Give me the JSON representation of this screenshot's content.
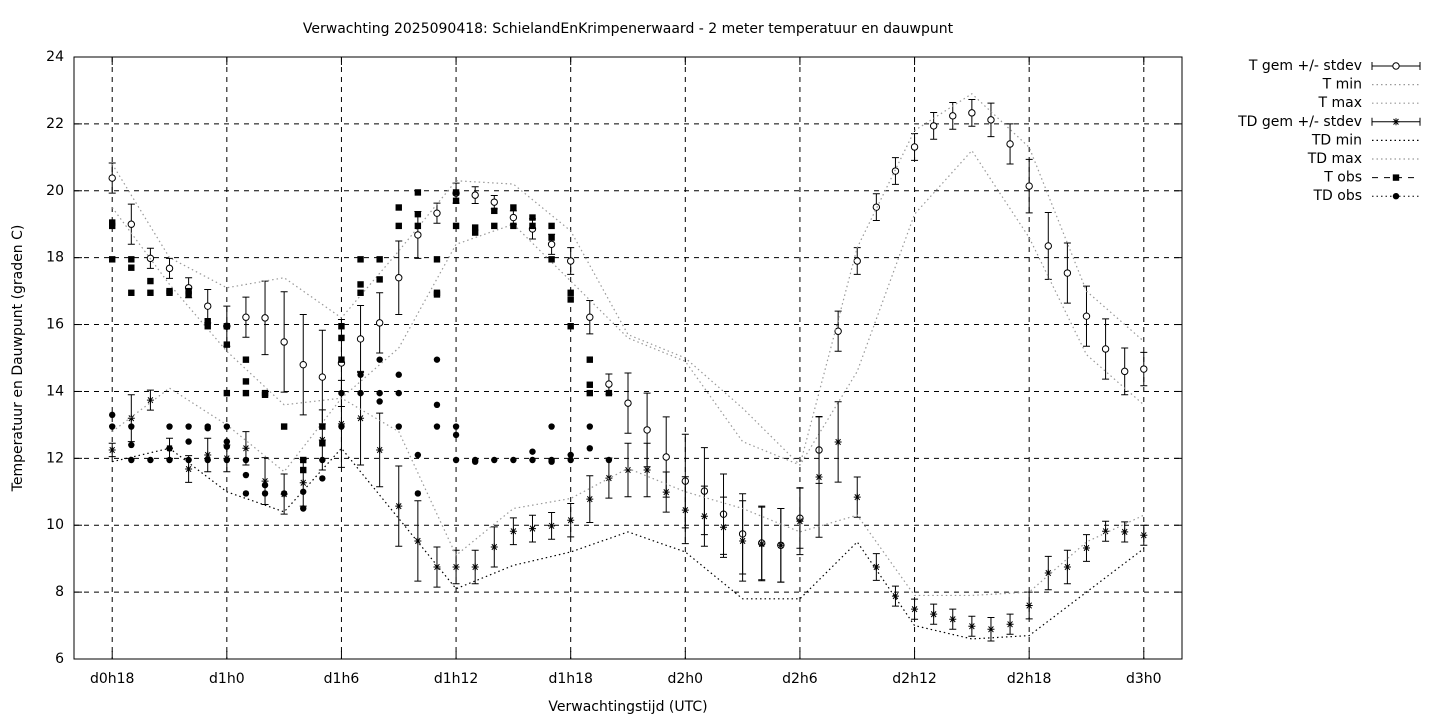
{
  "chart_data": {
    "type": "line",
    "title": "Verwachting 2025090418: SchielandEnKrimpenerwaard - 2 meter temperatuur en dauwpunt",
    "x_label": "Verwachtingstijd (UTC)",
    "y_label": "Temperatuur en Dauwpunt (graden C)",
    "xlim": [
      16,
      74
    ],
    "ylim": [
      6,
      24
    ],
    "xticks": [
      {
        "value": 18,
        "label": "d0h18"
      },
      {
        "value": 24,
        "label": "d1h0"
      },
      {
        "value": 30,
        "label": "d1h6"
      },
      {
        "value": 36,
        "label": "d1h12"
      },
      {
        "value": 42,
        "label": "d1h18"
      },
      {
        "value": 48,
        "label": "d2h0"
      },
      {
        "value": 54,
        "label": "d2h6"
      },
      {
        "value": 60,
        "label": "d2h12"
      },
      {
        "value": 66,
        "label": "d2h18"
      },
      {
        "value": 72,
        "label": "d3h0"
      }
    ],
    "yticks": [
      6,
      8,
      10,
      12,
      14,
      16,
      18,
      20,
      22,
      24
    ],
    "grid": true,
    "legend": "outside-right",
    "series": [
      {
        "name": "T gem +/- stdev",
        "style": "errorbars",
        "marker": "circle",
        "color": "#000000",
        "x": [
          18,
          19,
          20,
          21,
          22,
          23,
          24,
          25,
          26,
          27,
          28,
          29,
          30,
          31,
          32,
          33,
          34,
          35,
          36,
          37,
          38,
          39,
          40,
          41,
          42,
          43,
          44,
          45,
          46,
          47,
          48,
          49,
          50,
          51,
          52,
          53,
          54,
          55,
          56,
          57,
          58,
          59,
          60,
          61,
          62,
          63,
          64,
          65,
          66,
          67,
          68,
          69,
          70,
          71,
          72
        ],
        "values": [
          20.38,
          19.0,
          17.98,
          17.68,
          17.1,
          16.55,
          15.95,
          16.22,
          16.2,
          15.48,
          14.8,
          14.43,
          14.85,
          15.57,
          16.05,
          17.4,
          18.68,
          19.33,
          19.93,
          19.87,
          19.66,
          19.2,
          18.86,
          18.4,
          17.9,
          16.22,
          14.22,
          13.65,
          12.85,
          12.04,
          11.32,
          11.02,
          10.33,
          9.74,
          9.47,
          9.4,
          10.21,
          12.25,
          15.8,
          17.9,
          19.51,
          20.59,
          21.31,
          21.94,
          22.24,
          22.33,
          22.12,
          21.4,
          20.14,
          18.35,
          17.54,
          16.25,
          15.27,
          14.6,
          14.67
        ],
        "errors": [
          0.45,
          0.6,
          0.3,
          0.3,
          0.3,
          0.5,
          0.6,
          0.6,
          1.1,
          1.5,
          1.5,
          1.4,
          1.3,
          1.0,
          0.9,
          1.1,
          0.7,
          0.3,
          0.3,
          0.25,
          0.2,
          0.2,
          0.3,
          0.3,
          0.4,
          0.5,
          0.3,
          0.9,
          1.1,
          1.2,
          1.4,
          1.3,
          1.2,
          1.2,
          1.1,
          1.1,
          0.9,
          1.0,
          0.6,
          0.4,
          0.4,
          0.4,
          0.4,
          0.4,
          0.4,
          0.4,
          0.5,
          0.6,
          0.8,
          1.0,
          0.9,
          0.9,
          0.9,
          0.7,
          0.5
        ]
      },
      {
        "name": "T min",
        "style": "dotted",
        "color": "#999999",
        "x": [
          18,
          21,
          24,
          27,
          30,
          33,
          36,
          39,
          42,
          45,
          48,
          51,
          54,
          57,
          60,
          63,
          66,
          69,
          72
        ],
        "values": [
          19.5,
          17.2,
          15.2,
          13.6,
          13.8,
          15.3,
          18.4,
          19.0,
          17.3,
          15.6,
          14.9,
          12.5,
          11.8,
          14.6,
          19.3,
          21.2,
          18.6,
          15.1,
          13.6
        ]
      },
      {
        "name": "T max",
        "style": "dotted",
        "color": "#999999",
        "x": [
          18,
          21,
          24,
          27,
          30,
          33,
          36,
          39,
          42,
          45,
          48,
          51,
          54,
          57,
          60,
          63,
          66,
          69,
          72
        ],
        "values": [
          20.8,
          18.0,
          17.1,
          17.4,
          16.2,
          18.2,
          20.3,
          20.2,
          18.8,
          15.7,
          15.0,
          13.5,
          11.8,
          18.3,
          21.8,
          22.9,
          21.3,
          17.0,
          15.5
        ]
      },
      {
        "name": "TD gem +/- stdev",
        "style": "errorbars",
        "marker": "star",
        "color": "#000000",
        "x": [
          18,
          19,
          20,
          21,
          22,
          23,
          24,
          25,
          26,
          27,
          28,
          29,
          30,
          31,
          32,
          33,
          34,
          35,
          36,
          37,
          38,
          39,
          40,
          41,
          42,
          43,
          44,
          45,
          46,
          47,
          48,
          49,
          50,
          51,
          52,
          53,
          54,
          55,
          56,
          57,
          58,
          59,
          60,
          61,
          62,
          63,
          64,
          65,
          66,
          67,
          68,
          69,
          70,
          71,
          72
        ],
        "values": [
          12.25,
          13.2,
          13.74,
          12.3,
          11.68,
          12.1,
          12.0,
          12.3,
          11.32,
          10.93,
          11.27,
          12.55,
          13.03,
          13.2,
          12.25,
          10.57,
          9.53,
          8.75,
          8.75,
          8.75,
          9.35,
          9.82,
          9.9,
          9.98,
          10.15,
          10.78,
          11.41,
          11.65,
          11.65,
          10.99,
          10.45,
          10.27,
          9.94,
          9.53,
          9.44,
          9.4,
          10.12,
          11.44,
          12.49,
          10.84,
          8.75,
          7.88,
          7.49,
          7.34,
          7.19,
          6.98,
          6.89,
          7.04,
          7.6,
          8.57,
          8.75,
          9.32,
          9.82,
          9.8,
          9.7
        ],
        "errors": [
          0.2,
          0.7,
          0.3,
          0.3,
          0.4,
          0.5,
          0.4,
          0.5,
          0.7,
          0.6,
          0.7,
          0.9,
          1.3,
          1.4,
          1.1,
          1.2,
          1.2,
          0.6,
          0.5,
          0.5,
          0.6,
          0.4,
          0.4,
          0.4,
          0.5,
          0.7,
          0.6,
          0.8,
          0.8,
          0.6,
          1.0,
          0.9,
          0.9,
          1.2,
          1.1,
          1.1,
          1.0,
          1.8,
          1.2,
          0.6,
          0.4,
          0.3,
          0.3,
          0.3,
          0.3,
          0.3,
          0.35,
          0.3,
          0.4,
          0.5,
          0.5,
          0.4,
          0.3,
          0.3,
          0.3
        ]
      },
      {
        "name": "TD min",
        "style": "dotted",
        "color": "#000000",
        "x": [
          18,
          21,
          24,
          27,
          30,
          33,
          36,
          39,
          42,
          45,
          48,
          51,
          54,
          57,
          60,
          63,
          66,
          69,
          72
        ],
        "values": [
          11.9,
          12.3,
          11.0,
          10.4,
          12.3,
          10.2,
          8.1,
          8.8,
          9.2,
          9.8,
          9.2,
          7.8,
          7.8,
          9.5,
          7.0,
          6.6,
          6.7,
          8.0,
          9.3
        ]
      },
      {
        "name": "TD max",
        "style": "dotted",
        "color": "#999999",
        "x": [
          18,
          21,
          24,
          27,
          30,
          33,
          36,
          39,
          42,
          45,
          48,
          51,
          54,
          57,
          60,
          63,
          66,
          69,
          72
        ],
        "values": [
          12.8,
          14.1,
          13.0,
          11.6,
          13.8,
          12.8,
          9.1,
          10.5,
          10.8,
          11.7,
          11.0,
          10.5,
          9.8,
          10.3,
          7.9,
          7.9,
          8.0,
          9.5,
          10.3
        ]
      },
      {
        "name": "T obs",
        "style": "points",
        "marker": "square",
        "color": "#000000",
        "x": [
          18,
          18,
          18,
          19,
          19,
          19,
          20,
          20,
          21,
          21,
          22,
          22,
          23,
          23,
          24,
          24,
          24,
          25,
          25,
          25,
          26,
          26,
          27,
          28,
          28,
          29,
          29,
          30,
          30,
          30,
          31,
          31,
          31,
          32,
          32,
          33,
          33,
          34,
          34,
          34,
          35,
          35,
          35,
          36,
          36,
          36,
          37,
          37,
          38,
          38,
          39,
          39,
          40,
          40,
          41,
          41,
          41,
          42,
          42,
          42,
          43,
          43,
          43,
          44
        ],
        "values": [
          19.05,
          18.95,
          17.95,
          17.95,
          17.7,
          16.95,
          17.3,
          16.95,
          17.0,
          16.95,
          17.0,
          16.9,
          16.1,
          15.95,
          15.95,
          15.4,
          13.95,
          14.95,
          14.3,
          13.95,
          13.95,
          13.9,
          12.95,
          11.95,
          11.65,
          12.95,
          12.45,
          15.95,
          15.6,
          14.95,
          17.95,
          17.2,
          16.95,
          17.95,
          17.35,
          19.5,
          18.95,
          19.95,
          19.3,
          18.95,
          17.95,
          16.95,
          16.9,
          19.95,
          19.7,
          18.95,
          18.9,
          18.75,
          19.4,
          18.95,
          19.5,
          18.95,
          19.2,
          18.95,
          18.95,
          18.6,
          17.95,
          16.95,
          16.75,
          15.95,
          14.95,
          14.2,
          13.95,
          13.95
        ]
      },
      {
        "name": "TD obs",
        "style": "points",
        "marker": "dot",
        "color": "#000000",
        "x": [
          18,
          18,
          19,
          19,
          19,
          20,
          21,
          21,
          21,
          22,
          22,
          22,
          23,
          23,
          23,
          24,
          24,
          24,
          24,
          25,
          25,
          25,
          26,
          26,
          27,
          28,
          28,
          29,
          29,
          30,
          30,
          31,
          31,
          32,
          32,
          32,
          33,
          33,
          33,
          34,
          34,
          35,
          35,
          35,
          36,
          36,
          36,
          37,
          37,
          38,
          39,
          40,
          40,
          41,
          41,
          41,
          42,
          42,
          43,
          43,
          44
        ],
        "values": [
          13.3,
          12.95,
          12.95,
          12.4,
          11.95,
          11.95,
          12.95,
          12.3,
          11.95,
          12.95,
          12.5,
          11.95,
          12.95,
          12.9,
          11.95,
          12.95,
          12.5,
          12.35,
          11.95,
          11.95,
          11.5,
          10.95,
          11.2,
          10.95,
          10.95,
          11.0,
          10.5,
          11.95,
          11.4,
          13.95,
          12.95,
          14.5,
          13.95,
          14.95,
          13.95,
          13.7,
          14.5,
          13.95,
          12.95,
          12.1,
          10.95,
          14.95,
          13.6,
          12.95,
          12.95,
          12.7,
          11.95,
          11.95,
          11.9,
          11.95,
          11.95,
          12.2,
          11.95,
          12.95,
          11.95,
          11.9,
          12.1,
          11.95,
          12.95,
          12.3,
          11.95
        ]
      }
    ]
  }
}
